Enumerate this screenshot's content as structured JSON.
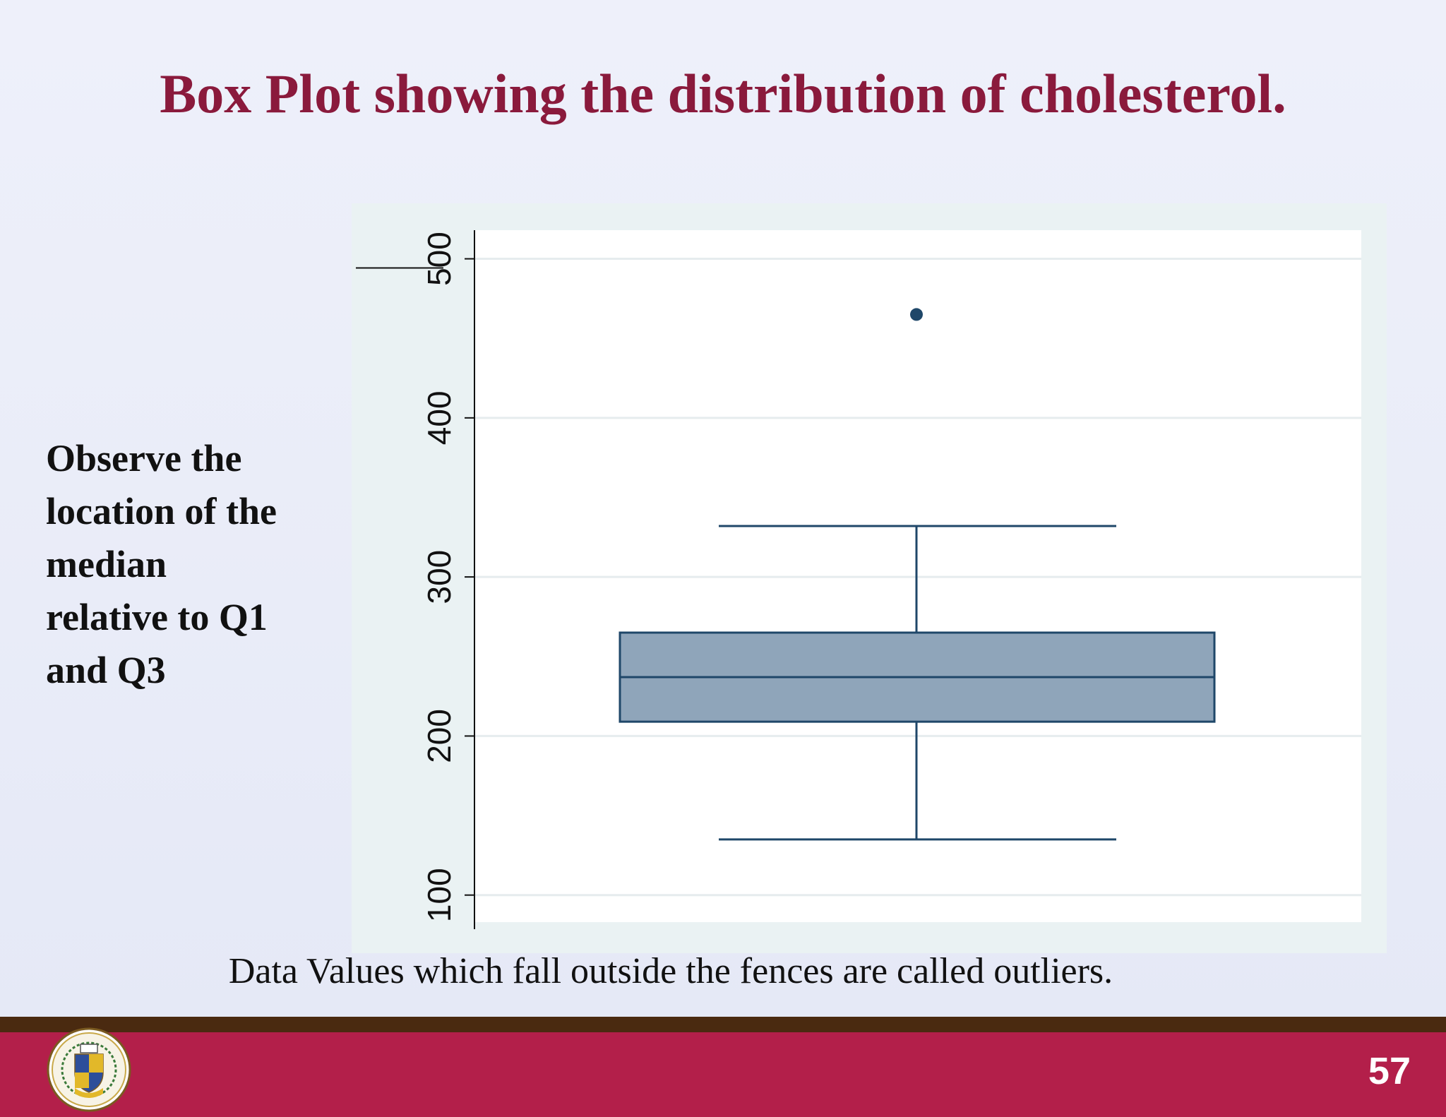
{
  "slide": {
    "title": "Box Plot showing the distribution of cholesterol.",
    "side_note_lines": [
      "Observe the",
      "location of the",
      "median",
      "relative to Q1",
      "and Q3"
    ],
    "footnote": "Data Values which fall outside the fences are called outliers.",
    "slide_number": "57",
    "logo_icon": "university-seal-icon"
  },
  "colors": {
    "title": "#8a1a3c",
    "footer": "#b31f4a",
    "footer_border": "#4a2a10",
    "box_fill": "#8fa5ba",
    "box_stroke": "#1f4769"
  },
  "chart_data": {
    "type": "box",
    "title": "",
    "xlabel": "",
    "ylabel": "",
    "ylim": [
      83,
      518
    ],
    "yticks": [
      100,
      200,
      300,
      400,
      500
    ],
    "grid": true,
    "legend": "none",
    "box": {
      "min": 135,
      "q1": 209,
      "median": 237,
      "q3": 265,
      "max": 332,
      "outliers": [
        465
      ]
    }
  }
}
